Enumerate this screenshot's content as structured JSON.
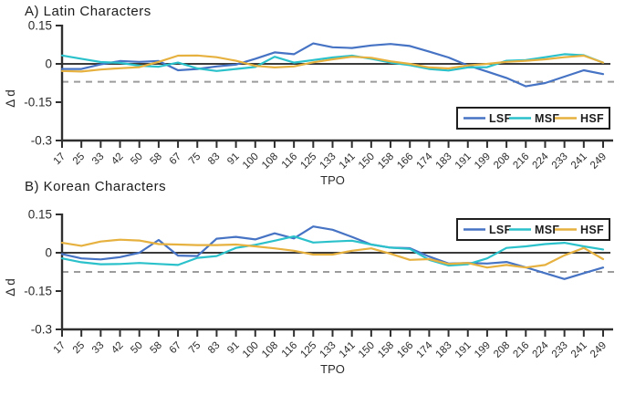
{
  "figure": {
    "background": "#ffffff",
    "axis_color": "#2f2f2f",
    "text_color": "#2b2b2b",
    "zero_line_color": "#3b3b3b",
    "threshold_line_color": "#9c9c9c",
    "legend_border_color": "#1f1f1f",
    "legend_text_color": "#1c1c1c"
  },
  "chart_data": [
    {
      "type": "line",
      "title": "A) Latin Characters",
      "xlabel": "TPO",
      "ylabel": "Δ d",
      "ylim": [
        -0.3,
        0.15
      ],
      "y_ticks": [
        0.15,
        0,
        -0.15,
        -0.3
      ],
      "y_tick_labels": [
        "0.15",
        "0",
        "-0.15",
        "-0.3"
      ],
      "x": [
        17,
        25,
        33,
        42,
        50,
        58,
        67,
        75,
        83,
        91,
        100,
        108,
        116,
        125,
        133,
        141,
        150,
        158,
        166,
        174,
        183,
        191,
        199,
        208,
        216,
        224,
        233,
        241,
        249
      ],
      "reference_lines": {
        "zero": 0,
        "dashed_threshold": -0.07
      },
      "legend": {
        "position": "bottom-right",
        "entries": [
          "LSF",
          "MSF",
          "HSF"
        ]
      },
      "series": [
        {
          "name": "LSF",
          "color": "#4673C4",
          "values": [
            -0.02,
            -0.02,
            -0.002,
            0.011,
            0.008,
            0.011,
            -0.025,
            -0.02,
            -0.01,
            -0.003,
            0.02,
            0.045,
            0.038,
            0.08,
            0.065,
            0.062,
            0.072,
            0.078,
            0.07,
            0.048,
            0.025,
            -0.006,
            -0.03,
            -0.055,
            -0.088,
            -0.075,
            -0.05,
            -0.025,
            -0.04
          ]
        },
        {
          "name": "MSF",
          "color": "#2BC1CB",
          "values": [
            0.033,
            0.02,
            0.007,
            0.004,
            -0.007,
            -0.011,
            0.005,
            -0.018,
            -0.028,
            -0.02,
            -0.012,
            0.028,
            0.005,
            0.015,
            0.025,
            0.032,
            0.02,
            0.005,
            -0.005,
            -0.02,
            -0.026,
            -0.014,
            -0.013,
            0.012,
            0.015,
            0.026,
            0.038,
            0.034,
            0.005
          ]
        },
        {
          "name": "HSF",
          "color": "#E6B13F",
          "values": [
            -0.028,
            -0.03,
            -0.022,
            -0.017,
            -0.013,
            0.008,
            0.032,
            0.033,
            0.026,
            0.012,
            -0.008,
            -0.014,
            -0.01,
            0.006,
            0.018,
            0.028,
            0.024,
            0.01,
            0.0,
            -0.014,
            -0.018,
            -0.006,
            0.0,
            0.008,
            0.012,
            0.018,
            0.026,
            0.032,
            0.005
          ]
        }
      ]
    },
    {
      "type": "line",
      "title": "B) Korean Characters",
      "xlabel": "TPO",
      "ylabel": "Δ d",
      "ylim": [
        -0.3,
        0.15
      ],
      "y_ticks": [
        0.15,
        0,
        -0.15,
        -0.3
      ],
      "y_tick_labels": [
        "0.15",
        "0",
        "-0.15",
        "-0.3"
      ],
      "x": [
        17,
        25,
        33,
        42,
        50,
        58,
        67,
        75,
        83,
        91,
        100,
        108,
        116,
        125,
        133,
        141,
        150,
        158,
        166,
        174,
        183,
        191,
        199,
        208,
        216,
        224,
        233,
        241,
        249
      ],
      "reference_lines": {
        "zero": 0,
        "dashed_threshold": -0.075
      },
      "legend": {
        "position": "top-right",
        "entries": [
          "LSF",
          "MSF",
          "HSF"
        ]
      },
      "series": [
        {
          "name": "LSF",
          "color": "#4673C4",
          "values": [
            -0.005,
            -0.022,
            -0.026,
            -0.017,
            0.0,
            0.05,
            -0.011,
            -0.013,
            0.055,
            0.062,
            0.052,
            0.076,
            0.056,
            0.103,
            0.09,
            0.062,
            0.032,
            0.02,
            0.018,
            -0.015,
            -0.042,
            -0.04,
            -0.042,
            -0.036,
            -0.057,
            -0.08,
            -0.103,
            -0.08,
            -0.058
          ]
        },
        {
          "name": "MSF",
          "color": "#2BC1CB",
          "values": [
            -0.022,
            -0.037,
            -0.045,
            -0.044,
            -0.04,
            -0.044,
            -0.048,
            -0.02,
            -0.013,
            0.019,
            0.031,
            0.047,
            0.064,
            0.04,
            0.044,
            0.047,
            0.032,
            0.02,
            0.015,
            -0.028,
            -0.05,
            -0.045,
            -0.022,
            0.019,
            0.025,
            0.034,
            0.039,
            0.025,
            0.013
          ]
        },
        {
          "name": "HSF",
          "color": "#E6B13F",
          "values": [
            0.039,
            0.027,
            0.044,
            0.051,
            0.048,
            0.034,
            0.032,
            0.03,
            0.03,
            0.032,
            0.025,
            0.017,
            0.008,
            -0.007,
            -0.007,
            0.008,
            0.017,
            -0.004,
            -0.028,
            -0.025,
            -0.044,
            -0.04,
            -0.058,
            -0.048,
            -0.058,
            -0.048,
            -0.01,
            0.019,
            -0.025
          ]
        }
      ]
    }
  ]
}
